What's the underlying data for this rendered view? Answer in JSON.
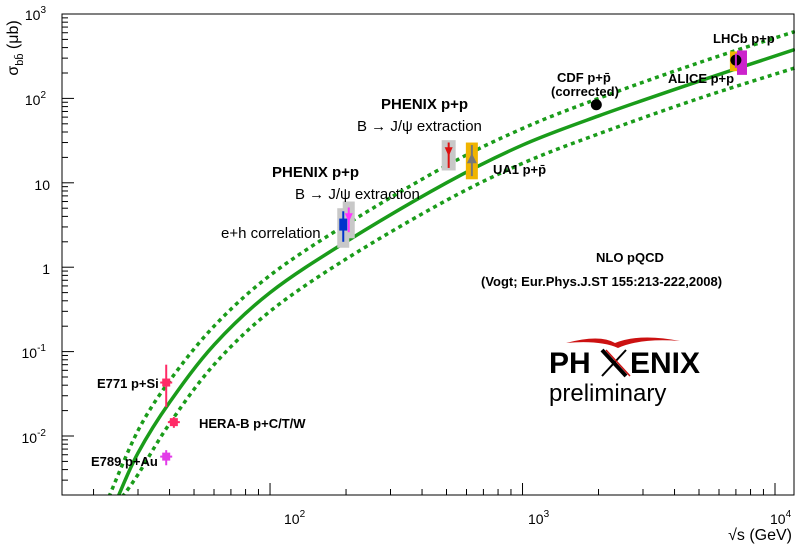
{
  "chart_data": {
    "type": "scatter",
    "title": "",
    "xlabel": "√s (GeV)",
    "ylabel": "σ_bb̄ (μb)",
    "x_scale": "log",
    "y_scale": "log",
    "xlim": [
      15,
      12000
    ],
    "ylim": [
      0.002,
      1000
    ],
    "x_ticks": [
      "10^2",
      "10^3",
      "10^4"
    ],
    "y_ticks": [
      "10^-2",
      "10^-1",
      "1",
      "10",
      "10^2",
      "10^3"
    ],
    "grid": false,
    "theory": {
      "name": "NLO pQCD",
      "reference": "(Vogt; Eur.Phys.J.ST 155:213-222,2008)",
      "central": {
        "x": [
          25,
          30,
          40,
          60,
          100,
          200,
          500,
          1000,
          2000,
          5000,
          12000
        ],
        "y": [
          0.0019,
          0.0063,
          0.025,
          0.12,
          0.5,
          2.0,
          10,
          28,
          62,
          160,
          380
        ]
      },
      "upper": {
        "x": [
          23,
          30,
          40,
          60,
          100,
          200,
          500,
          1000,
          2000,
          5000,
          12000
        ],
        "y": [
          0.0019,
          0.0116,
          0.045,
          0.2,
          0.8,
          3.2,
          16,
          44,
          100,
          265,
          620
        ]
      },
      "lower": {
        "x": [
          26,
          30,
          40,
          60,
          100,
          200,
          500,
          1000,
          2000,
          5000,
          12000
        ],
        "y": [
          0.0019,
          0.0035,
          0.014,
          0.07,
          0.3,
          1.25,
          6.2,
          17,
          38,
          100,
          230
        ]
      }
    },
    "points": [
      {
        "key": "e771",
        "label": "E771 p+Si",
        "x": 38.8,
        "y": 0.043,
        "ylo": 0.022,
        "yhi": 0.07,
        "color": "#ff2a66"
      },
      {
        "key": "herab",
        "label": "HERA-B p+C/T/W",
        "x": 41.6,
        "y": 0.0146,
        "ylo": 0.0125,
        "yhi": 0.0168,
        "color": "#ff2a66"
      },
      {
        "key": "e789",
        "label": "E789 p+Au",
        "x": 38.8,
        "y": 0.0057,
        "ylo": 0.0045,
        "yhi": 0.0068,
        "color": "#e23be8"
      },
      {
        "key": "eh",
        "label": "e+h correlation",
        "x": 195,
        "y": 3.2,
        "ylo": 2.0,
        "yhi": 4.6,
        "color": "#0033cc"
      },
      {
        "key": "jpsi200",
        "label": "",
        "x": 205,
        "y": 3.8,
        "ylo": 2.6,
        "yhi": 5.1,
        "color": "#ff33ff"
      },
      {
        "key": "jpsi500",
        "label": "",
        "x": 510,
        "y": 23,
        "ylo": 15,
        "yhi": 30,
        "color": "#dd1111"
      },
      {
        "key": "ua1",
        "label": "UA1 p+p̄",
        "x": 630,
        "y": 19,
        "ylo": 12,
        "yhi": 28,
        "color": "#777777"
      },
      {
        "key": "cdf",
        "label": "CDF p+p̄ (corrected)",
        "x": 1960,
        "y": 84,
        "ylo": 80,
        "yhi": 88,
        "color": "#000000"
      },
      {
        "key": "lhcb",
        "label": "LHCb p+p",
        "x": 7000,
        "y": 284,
        "ylo": 260,
        "yhi": 310,
        "color": "#000000"
      },
      {
        "key": "alice",
        "label": "ALICE p+p",
        "x": 7000,
        "y": 280,
        "ylo": 230,
        "yhi": 340,
        "color": "#cc22cc"
      }
    ],
    "annotations": {
      "phenix_a_title": "PHENIX p+p",
      "phenix_a_sub": "B → J/ψ extraction",
      "phenix_b_title": "PHENIX p+p",
      "phenix_b_sub": "B → J/ψ extraction",
      "eh": "e+h correlation",
      "e771": "E771 p+Si",
      "herab": "HERA-B p+C/T/W",
      "e789": "E789 p+Au",
      "ua1": "UA1 p+p̄",
      "cdf_1": "CDF p+p̄",
      "cdf_2": "(corrected)",
      "lhcb": "LHCb p+p",
      "alice": "ALICE p+p",
      "nlo": "NLO pQCD",
      "ref": "(Vogt; Eur.Phys.J.ST 155:213-222,2008)"
    },
    "colors": {
      "curve": "#1a9c1a",
      "phenix_title": "#1a1aff",
      "phenix_a_sub": "#dd22dd",
      "phenix_b_sub": "#ee2222"
    }
  },
  "logo": {
    "text_left": "PH",
    "text_right": "ENIX",
    "subtitle": "preliminary",
    "accent": "#cc1111"
  }
}
